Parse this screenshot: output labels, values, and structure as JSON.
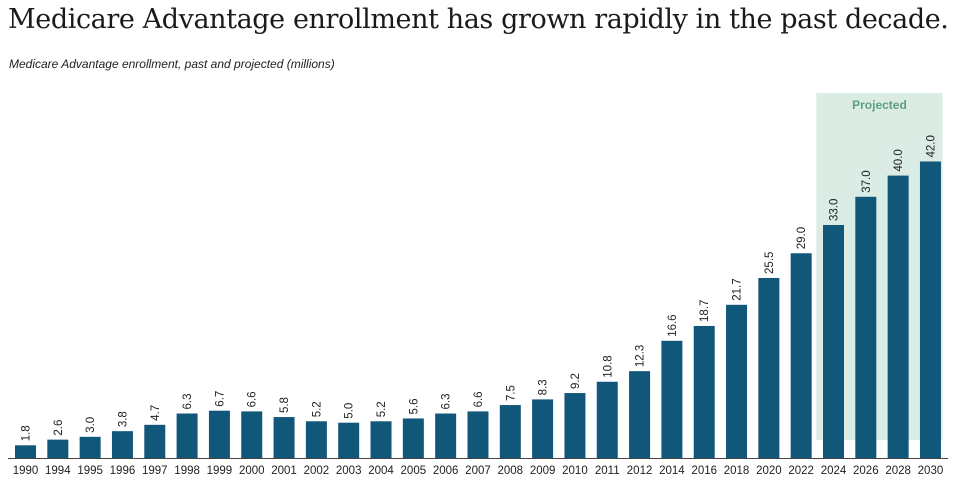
{
  "chart_data": {
    "type": "bar",
    "title": "Medicare Advantage enrollment has grown rapidly in the past decade.",
    "subtitle": "Medicare Advantage enrollment, past and projected (millions)",
    "xlabel": "",
    "ylabel": "",
    "ylim": [
      0,
      45
    ],
    "bar_color": "#11577a",
    "categories": [
      "1990",
      "1994",
      "1995",
      "1996",
      "1997",
      "1998",
      "1999",
      "2000",
      "2001",
      "2002",
      "2003",
      "2004",
      "2005",
      "2006",
      "2007",
      "2008",
      "2009",
      "2010",
      "2011",
      "2012",
      "2014",
      "2016",
      "2018",
      "2020",
      "2022",
      "2024",
      "2026",
      "2028",
      "2030"
    ],
    "values": [
      1.8,
      2.6,
      3.0,
      3.8,
      4.7,
      6.3,
      6.7,
      6.6,
      5.8,
      5.2,
      5.0,
      5.2,
      5.6,
      6.3,
      6.6,
      7.5,
      8.3,
      9.2,
      10.8,
      12.3,
      16.6,
      18.7,
      21.7,
      25.5,
      29.0,
      33.0,
      37.0,
      40.0,
      42.0
    ],
    "labels": [
      "1.8",
      "2.6",
      "3.0",
      "3.8",
      "4.7",
      "6.3",
      "6.7",
      "6.6",
      "5.8",
      "5.2",
      "5.0",
      "5.2",
      "5.6",
      "6.3",
      "6.6",
      "7.5",
      "8.3",
      "9.2",
      "10.8",
      "12.3",
      "16.6",
      "18.7",
      "21.7",
      "25.5",
      "29.0",
      "33.0",
      "37.0",
      "40.0",
      "42.0"
    ],
    "projection": {
      "label": "Projected",
      "from": "2024",
      "to": "2030",
      "shade_color": "#dbece4",
      "label_color": "#5e9f83"
    }
  }
}
